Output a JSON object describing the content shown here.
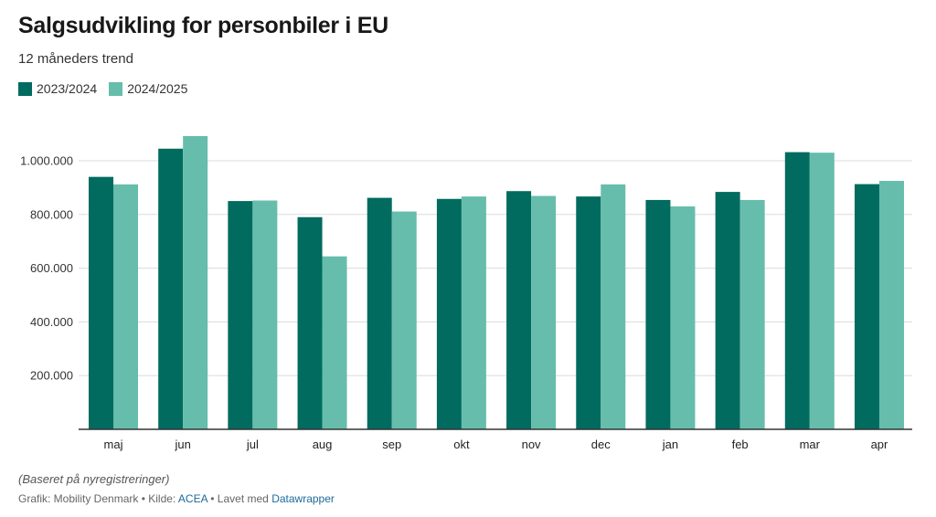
{
  "title": "Salgsudvikling for personbiler i EU",
  "subtitle": "12 måneders trend",
  "colors": {
    "series_2023": "#006b5e",
    "series_2024": "#66bdab",
    "grid": "#dcdcdc",
    "axis": "#333333",
    "link": "#1d6a9a"
  },
  "chart_data": {
    "type": "bar",
    "title": "Salgsudvikling for personbiler i EU",
    "subtitle": "12 måneders trend",
    "xlabel": "",
    "ylabel": "",
    "categories": [
      "maj",
      "jun",
      "jul",
      "aug",
      "sep",
      "okt",
      "nov",
      "dec",
      "jan",
      "feb",
      "mar",
      "apr"
    ],
    "series": [
      {
        "name": "2023/2024",
        "color": "#006b5e",
        "values": [
          940000,
          1045000,
          850000,
          790000,
          862000,
          858000,
          887000,
          867000,
          854000,
          884000,
          1032000,
          913000
        ]
      },
      {
        "name": "2024/2025",
        "color": "#66bdab",
        "values": [
          912000,
          1092000,
          852000,
          644000,
          811000,
          867000,
          869000,
          912000,
          830000,
          854000,
          1030000,
          925000
        ]
      }
    ],
    "ylim": [
      0,
      1100000
    ],
    "yticks": [
      200000,
      400000,
      600000,
      800000,
      1000000
    ],
    "ytick_labels": [
      "200.000",
      "400.000",
      "600.000",
      "800.000",
      "1.000.000"
    ],
    "grid": true,
    "legend_position": "top-left"
  },
  "note": "(Baseret på nyregistreringer)",
  "footer": {
    "prefix": "Grafik: Mobility Denmark • Kilde: ",
    "source": "ACEA",
    "middle": " • Lavet med ",
    "tool": "Datawrapper"
  }
}
